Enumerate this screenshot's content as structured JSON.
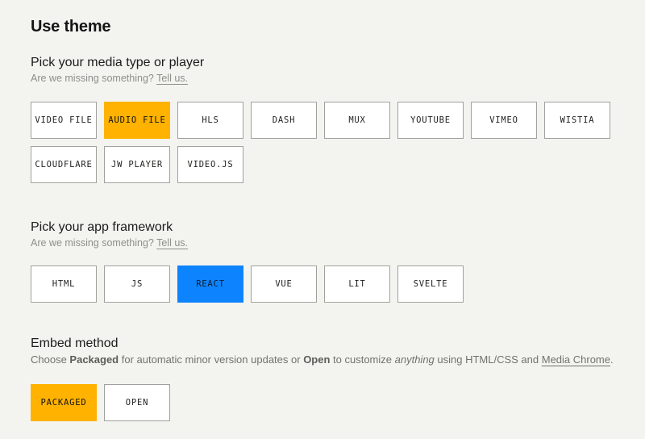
{
  "page": {
    "title": "Use theme",
    "background_color": "#F3F3F0"
  },
  "colors": {
    "selected_orange": "#FFB200",
    "selected_blue": "#0D84FE",
    "chip_border": "#A1A19E",
    "chip_background": "#FFFFFF",
    "subtitle_gray": "#8E8E8B"
  },
  "media": {
    "heading": "Pick your media type or player",
    "subtitle": "Are we missing something?",
    "link_label": "Tell us.",
    "selected": "AUDIO FILE",
    "options": [
      {
        "label": "VIDEO FILE",
        "selected": false
      },
      {
        "label": "AUDIO FILE",
        "selected": true
      },
      {
        "label": "HLS",
        "selected": false
      },
      {
        "label": "DASH",
        "selected": false
      },
      {
        "label": "MUX",
        "selected": false
      },
      {
        "label": "YOUTUBE",
        "selected": false
      },
      {
        "label": "VIMEO",
        "selected": false
      },
      {
        "label": "WISTIA",
        "selected": false
      },
      {
        "label": "CLOUDFLARE",
        "selected": false
      },
      {
        "label": "JW PLAYER",
        "selected": false
      },
      {
        "label": "VIDEO.JS",
        "selected": false
      }
    ]
  },
  "framework": {
    "heading": "Pick your app framework",
    "subtitle": "Are we missing something?",
    "link_label": "Tell us.",
    "selected": "REACT",
    "options": [
      {
        "label": "HTML",
        "selected": false
      },
      {
        "label": "JS",
        "selected": false
      },
      {
        "label": "REACT",
        "selected": true
      },
      {
        "label": "VUE",
        "selected": false
      },
      {
        "label": "LIT",
        "selected": false
      },
      {
        "label": "SVELTE",
        "selected": false
      }
    ]
  },
  "embed": {
    "heading": "Embed method",
    "description": {
      "part1": "Choose ",
      "bold1": "Packaged",
      "part2": " for automatic minor version updates or ",
      "bold2": "Open",
      "part3": " to customize ",
      "italic1": "anything",
      "part4": " using HTML/CSS and ",
      "link_label": "Media Chrome",
      "part5": "."
    },
    "selected": "PACKAGED",
    "options": [
      {
        "label": "PACKAGED",
        "selected": true
      },
      {
        "label": "OPEN",
        "selected": false
      }
    ]
  }
}
